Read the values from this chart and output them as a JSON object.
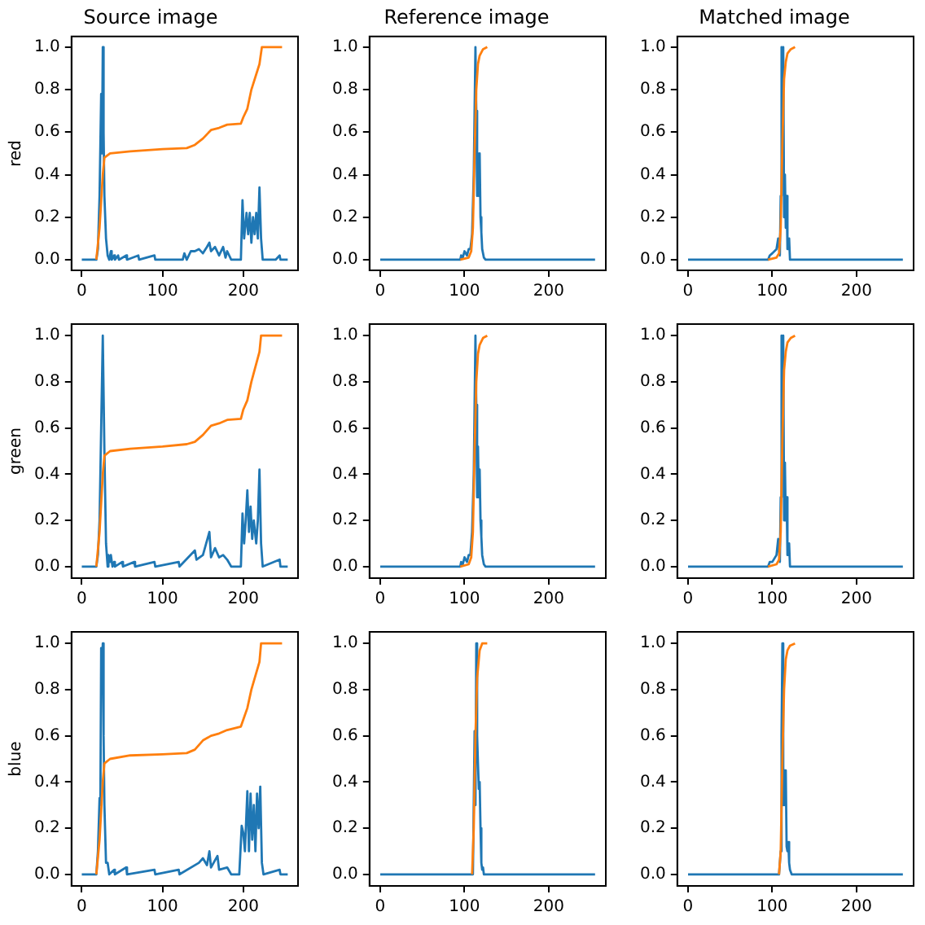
{
  "chart_data": [
    {
      "type": "line",
      "title": "Source image",
      "ylabel": "red",
      "xlim": [
        -12.75,
        267.75
      ],
      "ylim": [
        -0.05,
        1.05
      ],
      "xticks": [
        0,
        100,
        200
      ],
      "yticks": [
        {
          "value": 0,
          "label": "0.0"
        },
        {
          "value": 0.2,
          "label": "0.2"
        },
        {
          "value": 0.4,
          "label": "0.4"
        },
        {
          "value": 0.6,
          "label": "0.6"
        },
        {
          "value": 0.8,
          "label": "0.8"
        },
        {
          "value": 1,
          "label": "1.0"
        }
      ],
      "series": [
        {
          "color": "#1f77b4",
          "x": [
            0,
            18,
            20,
            22,
            24,
            25,
            26,
            27,
            28,
            30,
            32,
            34,
            36,
            37,
            40,
            41,
            45,
            46,
            55,
            56,
            70,
            71,
            90,
            91,
            125,
            127,
            130,
            135,
            140,
            145,
            150,
            155,
            158,
            160,
            165,
            170,
            175,
            178,
            180,
            185,
            197,
            199,
            201,
            204,
            206,
            208,
            210,
            212,
            214,
            216,
            218,
            220,
            222,
            224,
            240,
            245,
            246,
            255
          ],
          "values": [
            0,
            0,
            0.05,
            0.3,
            0.78,
            0.5,
            1.0,
            0.6,
            0.3,
            0.1,
            0.02,
            0,
            0.04,
            0,
            0.02,
            0,
            0.02,
            0,
            0.02,
            0,
            0.02,
            0,
            0.02,
            0,
            0,
            0.03,
            0,
            0.04,
            0.04,
            0.05,
            0.03,
            0.06,
            0.08,
            0.04,
            0.06,
            0.02,
            0.06,
            0.01,
            0.04,
            0,
            0,
            0.28,
            0.1,
            0.22,
            0.12,
            0.22,
            0.08,
            0.2,
            0.12,
            0.22,
            0.1,
            0.34,
            0.1,
            0,
            0,
            0.02,
            0,
            0
          ]
        },
        {
          "color": "#ff7f0e",
          "x": [
            18,
            22,
            26,
            28,
            35,
            60,
            100,
            130,
            140,
            150,
            160,
            170,
            180,
            197,
            200,
            205,
            210,
            220,
            223,
            248
          ],
          "values": [
            0,
            0.15,
            0.4,
            0.48,
            0.5,
            0.51,
            0.52,
            0.525,
            0.54,
            0.57,
            0.61,
            0.62,
            0.635,
            0.64,
            0.67,
            0.71,
            0.8,
            0.92,
            1.0,
            1.0
          ]
        }
      ]
    },
    {
      "type": "line",
      "title": "Reference image",
      "xlim": [
        -12.75,
        267.75
      ],
      "ylim": [
        -0.05,
        1.05
      ],
      "xticks": [
        0,
        100,
        200
      ],
      "yticks": [
        {
          "value": 0,
          "label": "0.0"
        },
        {
          "value": 0.2,
          "label": "0.2"
        },
        {
          "value": 0.4,
          "label": "0.4"
        },
        {
          "value": 0.6,
          "label": "0.6"
        },
        {
          "value": 0.8,
          "label": "0.8"
        },
        {
          "value": 1,
          "label": "1.0"
        }
      ],
      "series": [
        {
          "color": "#1f77b4",
          "x": [
            0,
            95,
            96,
            98,
            100,
            103,
            105,
            107,
            109,
            111,
            113,
            114,
            115,
            116,
            117,
            118,
            119,
            120,
            121,
            123,
            125,
            255
          ],
          "values": [
            0,
            0,
            0.02,
            0.01,
            0.04,
            0.02,
            0.05,
            0.05,
            0.12,
            0.4,
            1.0,
            0.7,
            0.3,
            0.5,
            0.3,
            0.5,
            0.2,
            0.13,
            0.05,
            0.01,
            0,
            0
          ]
        },
        {
          "color": "#ff7f0e",
          "x": [
            95,
            105,
            108,
            110,
            112,
            114,
            116,
            118,
            122,
            127
          ],
          "values": [
            0,
            0.01,
            0.04,
            0.15,
            0.5,
            0.8,
            0.92,
            0.96,
            0.99,
            1.0
          ]
        }
      ]
    },
    {
      "type": "line",
      "title": "Matched image",
      "xlim": [
        -12.75,
        267.75
      ],
      "ylim": [
        -0.05,
        1.05
      ],
      "xticks": [
        0,
        100,
        200
      ],
      "yticks": [
        {
          "value": 0,
          "label": "0.0"
        },
        {
          "value": 0.2,
          "label": "0.2"
        },
        {
          "value": 0.4,
          "label": "0.4"
        },
        {
          "value": 0.6,
          "label": "0.6"
        },
        {
          "value": 0.8,
          "label": "0.8"
        },
        {
          "value": 1,
          "label": "1.0"
        }
      ],
      "series": [
        {
          "color": "#1f77b4",
          "x": [
            0,
            95,
            97,
            100,
            105,
            107,
            109,
            110,
            111,
            112,
            113,
            114,
            115,
            116,
            117,
            118,
            119,
            120,
            121,
            255
          ],
          "values": [
            0,
            0,
            0.02,
            0.03,
            0.05,
            0.1,
            0.02,
            0.3,
            1.0,
            0.5,
            1.0,
            0.2,
            0.4,
            0.15,
            0.3,
            0.05,
            0.05,
            0.1,
            0,
            0
          ]
        },
        {
          "color": "#ff7f0e",
          "x": [
            95,
            105,
            108,
            110,
            112,
            114,
            116,
            118,
            122,
            127
          ],
          "values": [
            0,
            0.01,
            0.03,
            0.15,
            0.55,
            0.85,
            0.93,
            0.97,
            0.99,
            1.0
          ]
        }
      ]
    },
    {
      "type": "line",
      "ylabel": "green",
      "xlim": [
        -12.75,
        267.75
      ],
      "ylim": [
        -0.05,
        1.05
      ],
      "xticks": [
        0,
        100,
        200
      ],
      "yticks": [
        {
          "value": 0,
          "label": "0.0"
        },
        {
          "value": 0.2,
          "label": "0.2"
        },
        {
          "value": 0.4,
          "label": "0.4"
        },
        {
          "value": 0.6,
          "label": "0.6"
        },
        {
          "value": 0.8,
          "label": "0.8"
        },
        {
          "value": 1,
          "label": "1.0"
        }
      ],
      "series": [
        {
          "color": "#1f77b4",
          "x": [
            0,
            18,
            20,
            22,
            24,
            26,
            28,
            30,
            32,
            33,
            35,
            36,
            38,
            40,
            41,
            50,
            51,
            65,
            66,
            90,
            91,
            120,
            121,
            140,
            142,
            150,
            158,
            160,
            165,
            170,
            175,
            180,
            185,
            197,
            199,
            201,
            203,
            205,
            207,
            209,
            211,
            213,
            216,
            218,
            220,
            222,
            224,
            245,
            246,
            255
          ],
          "values": [
            0,
            0,
            0.05,
            0.2,
            0.6,
            1.0,
            0.5,
            0.1,
            0,
            0.05,
            0.02,
            0.05,
            0,
            0.02,
            0,
            0.02,
            0,
            0.02,
            0,
            0.02,
            0,
            0.02,
            0,
            0.07,
            0.03,
            0.05,
            0.15,
            0.04,
            0.08,
            0.04,
            0.05,
            0.03,
            0,
            0,
            0.23,
            0.1,
            0.2,
            0.33,
            0.15,
            0.26,
            0.12,
            0.2,
            0.1,
            0.2,
            0.42,
            0.1,
            0,
            0.03,
            0,
            0
          ]
        },
        {
          "color": "#ff7f0e",
          "x": [
            18,
            22,
            26,
            28,
            35,
            60,
            100,
            130,
            140,
            150,
            160,
            170,
            180,
            197,
            200,
            205,
            210,
            220,
            222,
            248
          ],
          "values": [
            0,
            0.15,
            0.4,
            0.48,
            0.5,
            0.51,
            0.52,
            0.53,
            0.54,
            0.57,
            0.61,
            0.62,
            0.635,
            0.64,
            0.68,
            0.72,
            0.8,
            0.93,
            1.0,
            1.0
          ]
        }
      ]
    },
    {
      "type": "line",
      "xlim": [
        -12.75,
        267.75
      ],
      "ylim": [
        -0.05,
        1.05
      ],
      "xticks": [
        0,
        100,
        200
      ],
      "yticks": [
        {
          "value": 0,
          "label": "0.0"
        },
        {
          "value": 0.2,
          "label": "0.2"
        },
        {
          "value": 0.4,
          "label": "0.4"
        },
        {
          "value": 0.6,
          "label": "0.6"
        },
        {
          "value": 0.8,
          "label": "0.8"
        },
        {
          "value": 1,
          "label": "1.0"
        }
      ],
      "series": [
        {
          "color": "#1f77b4",
          "x": [
            0,
            95,
            96,
            98,
            100,
            103,
            105,
            107,
            109,
            111,
            113,
            114,
            115,
            116,
            117,
            118,
            119,
            120,
            121,
            123,
            125,
            255
          ],
          "values": [
            0,
            0,
            0.02,
            0.01,
            0.04,
            0.02,
            0.05,
            0.05,
            0.15,
            0.4,
            1.0,
            0.7,
            0.3,
            0.52,
            0.3,
            0.42,
            0.2,
            0.13,
            0.05,
            0.01,
            0,
            0
          ]
        },
        {
          "color": "#ff7f0e",
          "x": [
            95,
            105,
            108,
            110,
            112,
            114,
            116,
            118,
            122,
            127
          ],
          "values": [
            0,
            0.01,
            0.04,
            0.15,
            0.5,
            0.8,
            0.92,
            0.96,
            0.99,
            1.0
          ]
        }
      ]
    },
    {
      "type": "line",
      "xlim": [
        -12.75,
        267.75
      ],
      "ylim": [
        -0.05,
        1.05
      ],
      "xticks": [
        0,
        100,
        200
      ],
      "yticks": [
        {
          "value": 0,
          "label": "0.0"
        },
        {
          "value": 0.2,
          "label": "0.2"
        },
        {
          "value": 0.4,
          "label": "0.4"
        },
        {
          "value": 0.6,
          "label": "0.6"
        },
        {
          "value": 0.8,
          "label": "0.8"
        },
        {
          "value": 1,
          "label": "1.0"
        }
      ],
      "series": [
        {
          "color": "#1f77b4",
          "x": [
            0,
            95,
            97,
            100,
            105,
            107,
            109,
            110,
            111,
            112,
            113,
            114,
            115,
            116,
            117,
            118,
            119,
            120,
            121,
            255
          ],
          "values": [
            0,
            0,
            0.02,
            0.02,
            0.05,
            0.12,
            0.02,
            0.3,
            1.0,
            0.5,
            1.0,
            0.2,
            0.45,
            0.2,
            0.3,
            0.05,
            0.05,
            0.1,
            0,
            0
          ]
        },
        {
          "color": "#ff7f0e",
          "x": [
            95,
            105,
            108,
            110,
            112,
            114,
            116,
            118,
            122,
            127
          ],
          "values": [
            0,
            0.01,
            0.03,
            0.15,
            0.55,
            0.85,
            0.93,
            0.97,
            0.99,
            1.0
          ]
        }
      ]
    },
    {
      "type": "line",
      "ylabel": "blue",
      "xlim": [
        -12.75,
        267.75
      ],
      "ylim": [
        -0.05,
        1.05
      ],
      "xticks": [
        0,
        100,
        200
      ],
      "yticks": [
        {
          "value": 0,
          "label": "0.0"
        },
        {
          "value": 0.2,
          "label": "0.2"
        },
        {
          "value": 0.4,
          "label": "0.4"
        },
        {
          "value": 0.6,
          "label": "0.6"
        },
        {
          "value": 0.8,
          "label": "0.8"
        },
        {
          "value": 1,
          "label": "1.0"
        }
      ],
      "series": [
        {
          "color": "#1f77b4",
          "x": [
            0,
            18,
            20,
            22,
            23,
            24,
            25,
            26,
            27,
            28,
            30,
            32,
            34,
            40,
            41,
            55,
            56,
            90,
            91,
            120,
            121,
            145,
            150,
            155,
            158,
            160,
            168,
            170,
            180,
            185,
            195,
            198,
            200,
            202,
            205,
            207,
            209,
            211,
            213,
            215,
            217,
            219,
            221,
            223,
            225,
            245,
            246,
            255
          ],
          "values": [
            0,
            0,
            0.1,
            0.33,
            0.3,
            0.98,
            0.9,
            1.0,
            0.6,
            0.3,
            0.05,
            0.05,
            0,
            0.02,
            0,
            0.03,
            0,
            0.02,
            0,
            0.02,
            0,
            0.05,
            0.07,
            0.04,
            0.1,
            0.03,
            0.08,
            0.02,
            0.03,
            0,
            0,
            0.21,
            0.18,
            0.1,
            0.36,
            0.1,
            0.35,
            0.15,
            0.3,
            0.1,
            0.35,
            0.2,
            0.38,
            0.05,
            0,
            0.02,
            0,
            0
          ]
        },
        {
          "color": "#ff7f0e",
          "x": [
            18,
            22,
            26,
            28,
            35,
            60,
            100,
            130,
            140,
            150,
            160,
            170,
            180,
            197,
            200,
            205,
            210,
            220,
            222,
            248
          ],
          "values": [
            0,
            0.15,
            0.4,
            0.48,
            0.5,
            0.515,
            0.52,
            0.525,
            0.54,
            0.58,
            0.6,
            0.61,
            0.625,
            0.64,
            0.67,
            0.72,
            0.8,
            0.92,
            1.0,
            1.0
          ]
        }
      ]
    },
    {
      "type": "line",
      "xlim": [
        -12.75,
        267.75
      ],
      "ylim": [
        -0.05,
        1.05
      ],
      "xticks": [
        0,
        100,
        200
      ],
      "yticks": [
        {
          "value": 0,
          "label": "0.0"
        },
        {
          "value": 0.2,
          "label": "0.2"
        },
        {
          "value": 0.4,
          "label": "0.4"
        },
        {
          "value": 0.6,
          "label": "0.6"
        },
        {
          "value": 0.8,
          "label": "0.8"
        },
        {
          "value": 1,
          "label": "1.0"
        }
      ],
      "series": [
        {
          "color": "#1f77b4",
          "x": [
            0,
            110,
            112,
            113,
            114,
            115,
            116,
            117,
            118,
            119,
            120,
            121,
            122,
            123,
            255
          ],
          "values": [
            0,
            0,
            0.62,
            0.3,
            1.0,
            0.6,
            0.48,
            0.37,
            0.4,
            0.2,
            0.05,
            0.02,
            0.03,
            0,
            0
          ]
        },
        {
          "color": "#ff7f0e",
          "x": [
            109,
            111,
            113,
            115,
            118,
            121,
            127
          ],
          "values": [
            0,
            0.2,
            0.6,
            0.85,
            0.97,
            1.0,
            1.0
          ]
        }
      ]
    },
    {
      "type": "line",
      "xlim": [
        -12.75,
        267.75
      ],
      "ylim": [
        -0.05,
        1.05
      ],
      "xticks": [
        0,
        100,
        200
      ],
      "yticks": [
        {
          "value": 0,
          "label": "0.0"
        },
        {
          "value": 0.2,
          "label": "0.2"
        },
        {
          "value": 0.4,
          "label": "0.4"
        },
        {
          "value": 0.6,
          "label": "0.6"
        },
        {
          "value": 0.8,
          "label": "0.8"
        },
        {
          "value": 1,
          "label": "1.0"
        }
      ],
      "series": [
        {
          "color": "#1f77b4",
          "x": [
            0,
            108,
            110,
            111,
            112,
            113,
            114,
            115,
            116,
            117,
            118,
            119,
            120,
            121,
            123,
            255
          ],
          "values": [
            0,
            0,
            0.1,
            0.6,
            1.0,
            0.3,
            0.45,
            0.3,
            0.45,
            0.12,
            0.1,
            0.14,
            0.05,
            0.02,
            0,
            0
          ]
        },
        {
          "color": "#ff7f0e",
          "x": [
            108,
            110,
            112,
            114,
            116,
            118,
            121,
            127
          ],
          "values": [
            0,
            0.1,
            0.5,
            0.8,
            0.93,
            0.97,
            0.99,
            1.0
          ]
        }
      ]
    }
  ]
}
